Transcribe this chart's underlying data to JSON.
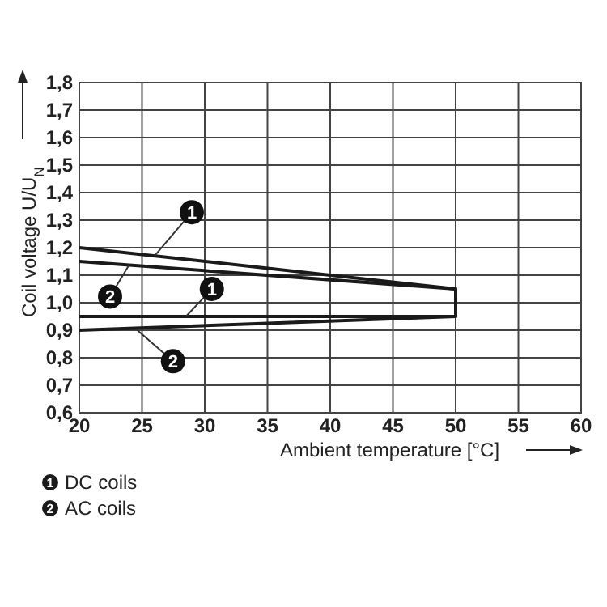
{
  "chart_data": {
    "type": "line",
    "xlabel": "Ambient temperature [°C]",
    "ylabel": "Coil voltage U/U$_{N}$",
    "xlim": [
      20,
      60
    ],
    "xticks": [
      20,
      25,
      30,
      35,
      40,
      45,
      50,
      55,
      60
    ],
    "ylim": [
      0.6,
      1.8
    ],
    "yticks": [
      {
        "value": 0.6,
        "label": "0,6"
      },
      {
        "value": 0.7,
        "label": "0,7"
      },
      {
        "value": 0.8,
        "label": "0,8"
      },
      {
        "value": 0.9,
        "label": "0,9"
      },
      {
        "value": 1.0,
        "label": "1,0"
      },
      {
        "value": 1.1,
        "label": "1,1"
      },
      {
        "value": 1.2,
        "label": "1,2"
      },
      {
        "value": 1.3,
        "label": "1,3"
      },
      {
        "value": 1.4,
        "label": "1,4"
      },
      {
        "value": 1.5,
        "label": "1,5"
      },
      {
        "value": 1.6,
        "label": "1,6"
      },
      {
        "value": 1.7,
        "label": "1,7"
      },
      {
        "value": 1.8,
        "label": "1,8"
      }
    ],
    "grid": true,
    "legend": "bottom left",
    "marker": "none",
    "line_style": "solid",
    "series": [
      {
        "name": "DC coils",
        "color": "#1a1a1a",
        "x": [
          20,
          50,
          50,
          35,
          20
        ],
        "values": [
          1.2,
          1.05,
          0.95,
          0.95,
          0.95
        ]
      },
      {
        "name": "AC coils",
        "color": "#1a1a1a",
        "x": [
          20,
          50,
          50,
          35,
          20
        ],
        "values": [
          1.15,
          1.05,
          0.95,
          0.925,
          0.9
        ]
      }
    ],
    "annotations": [
      {
        "text": "1",
        "x": 26,
        "y": 1.17
      },
      {
        "text": "2",
        "x": 24,
        "y": 1.14
      },
      {
        "text": "1",
        "x": 28.5,
        "y": 0.95
      },
      {
        "text": "2",
        "x": 24.5,
        "y": 0.905
      }
    ]
  }
}
